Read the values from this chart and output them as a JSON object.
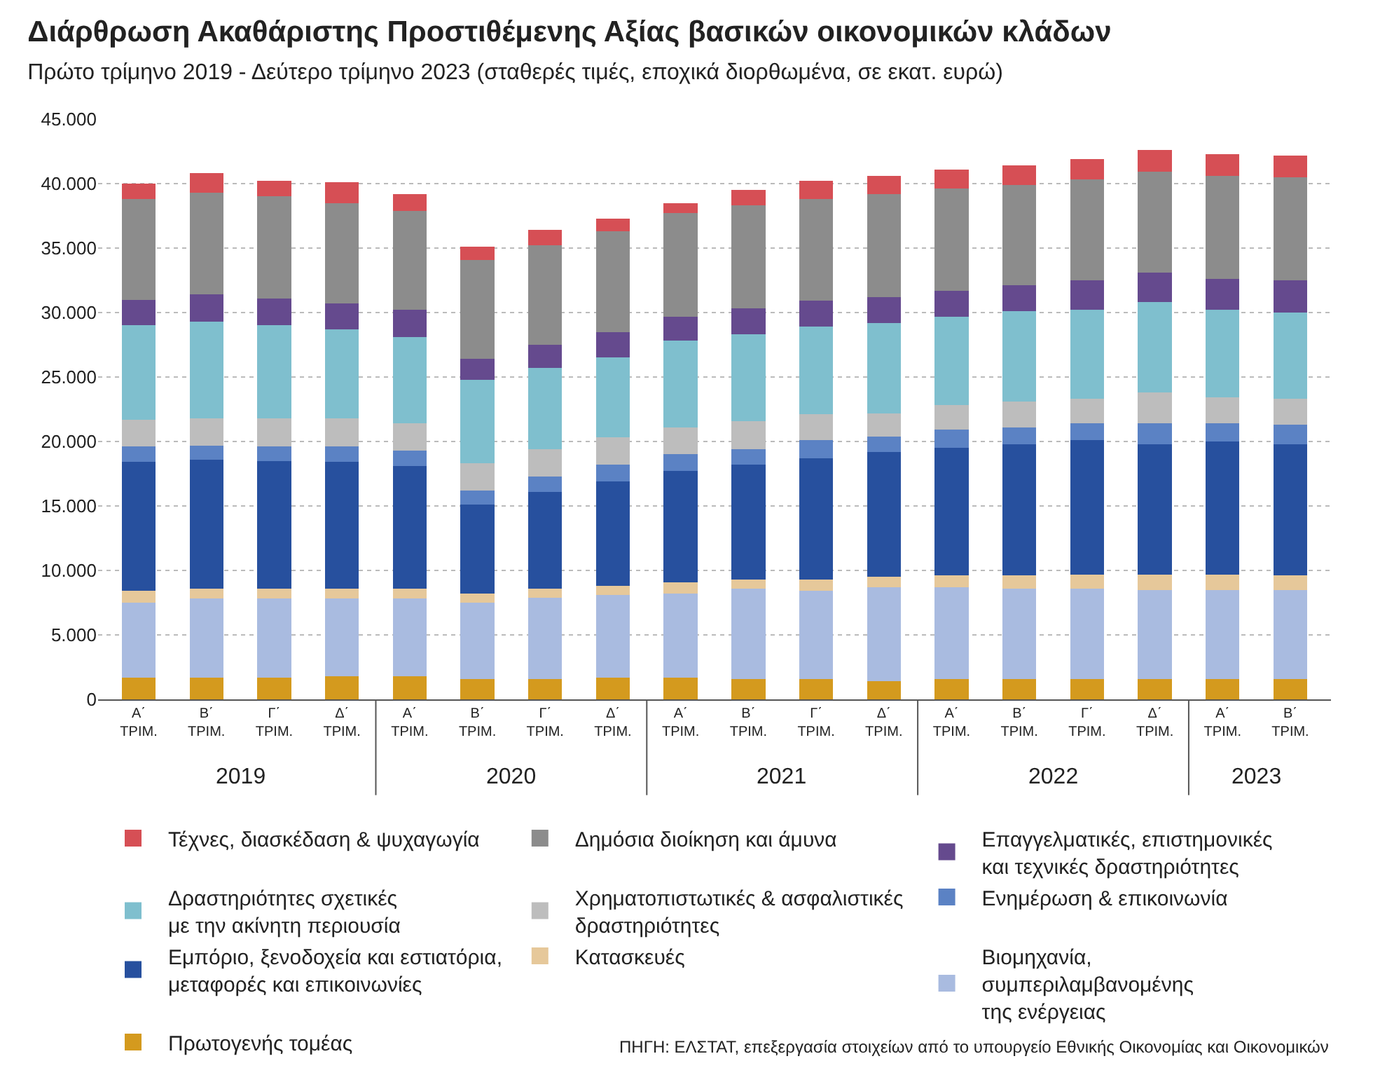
{
  "chart_data": {
    "type": "bar",
    "stacked": true,
    "title": "Διάρθρωση Ακαθάριστης Προστιθέμενης Αξίας βασικών οικονομικών κλάδων",
    "subtitle": "Πρώτο τρίμηνο 2019 - Δεύτερο τρίμηνο 2023 (σταθερές τιμές, εποχικά διορθωμένα, σε εκατ. ευρώ)",
    "categories": [
      "Α΄ ΤΡΙΜ.",
      "Β΄ ΤΡΙΜ.",
      "Γ΄ ΤΡΙΜ.",
      "Δ΄ ΤΡΙΜ.",
      "Α΄ ΤΡΙΜ.",
      "Β΄ ΤΡΙΜ.",
      "Γ΄ ΤΡΙΜ.",
      "Δ΄ ΤΡΙΜ.",
      "Α΄ ΤΡΙΜ.",
      "Β΄ ΤΡΙΜ.",
      "Γ΄ ΤΡΙΜ.",
      "Δ΄ ΤΡΙΜ.",
      "Α΄ ΤΡΙΜ.",
      "Β΄ ΤΡΙΜ.",
      "Γ΄ ΤΡΙΜ.",
      "Δ΄ ΤΡΙΜ.",
      "Α΄ ΤΡΙΜ.",
      "Β΄ ΤΡΙΜ."
    ],
    "series": [
      {
        "name": "Πρωτογενής τομέας",
        "color": "#d49a1e",
        "values": [
          1700,
          1700,
          1700,
          1800,
          1800,
          1600,
          1600,
          1700,
          1700,
          1600,
          1600,
          1400,
          1600,
          1600,
          1600,
          1600,
          1600,
          1600
        ]
      },
      {
        "name": "Βιομηχανία,\nσυμπεριλαμβανομένης\nτης ενέργειας",
        "color": "#a9bbe0",
        "values": [
          5800,
          6100,
          6100,
          6000,
          6000,
          5900,
          6300,
          6400,
          6500,
          7000,
          6800,
          7300,
          7100,
          7000,
          7000,
          6900,
          6900,
          6900
        ]
      },
      {
        "name": "Κατασκευές",
        "color": "#e6c89a",
        "values": [
          900,
          800,
          800,
          800,
          800,
          700,
          700,
          700,
          900,
          700,
          900,
          800,
          900,
          1000,
          1100,
          1200,
          1200,
          1100
        ]
      },
      {
        "name": "Εμπόριο, ξενοδοχεία και εστιατόρια,\nμεταφορές και επικοινωνίες",
        "color": "#27509e",
        "values": [
          10000,
          10000,
          9900,
          9800,
          9500,
          6900,
          7500,
          8100,
          8600,
          8900,
          9400,
          9700,
          9900,
          10200,
          10400,
          10100,
          10300,
          10200
        ]
      },
      {
        "name": "Ενημέρωση & επικοινωνία",
        "color": "#5b82c4",
        "values": [
          1200,
          1100,
          1100,
          1200,
          1200,
          1100,
          1200,
          1300,
          1300,
          1200,
          1400,
          1200,
          1400,
          1300,
          1300,
          1600,
          1400,
          1500
        ]
      },
      {
        "name": "Χρηματοπιστωτικές & ασφαλιστικές\nδραστηριότητες",
        "color": "#bdbdbd",
        "values": [
          2100,
          2100,
          2200,
          2200,
          2100,
          2100,
          2100,
          2100,
          2100,
          2200,
          2000,
          1800,
          1900,
          2000,
          1900,
          2400,
          2000,
          2000
        ]
      },
      {
        "name": "Δραστηριότητες σχετικές\nμε την ακίνητη περιουσία",
        "color": "#7fbfce",
        "values": [
          7300,
          7500,
          7200,
          6900,
          6700,
          6500,
          6300,
          6200,
          6700,
          6700,
          6800,
          7000,
          6900,
          7000,
          6900,
          7000,
          6800,
          6700
        ]
      },
      {
        "name": "Επαγγελματικές, επιστημονικές\nκαι τεχνικές δραστηριότητες",
        "color": "#654a8e",
        "values": [
          2000,
          2100,
          2100,
          2000,
          2100,
          1600,
          1800,
          2000,
          1900,
          2000,
          2000,
          2000,
          2000,
          2000,
          2300,
          2300,
          2400,
          2500
        ]
      },
      {
        "name": "Δημόσια διοίκηση και άμυνα",
        "color": "#8c8c8c",
        "values": [
          7800,
          7900,
          7900,
          7800,
          7700,
          7700,
          7700,
          7800,
          8000,
          8000,
          7900,
          8000,
          7900,
          7800,
          7800,
          7800,
          8000,
          8000
        ]
      },
      {
        "name": "Τέχνες, διασκέδαση & ψυχαγωγία",
        "color": "#d64f55",
        "values": [
          1200,
          1500,
          1200,
          1600,
          1300,
          1000,
          1200,
          1000,
          800,
          1200,
          1400,
          1400,
          1500,
          1500,
          1600,
          1700,
          1700,
          1700
        ]
      }
    ],
    "ylim": [
      0,
      45000
    ],
    "yticks": [
      {
        "value": 0,
        "label": "0"
      },
      {
        "value": 5000,
        "label": "5.000"
      },
      {
        "value": 10000,
        "label": "10.000"
      },
      {
        "value": 15000,
        "label": "15.000"
      },
      {
        "value": 20000,
        "label": "20.000"
      },
      {
        "value": 25000,
        "label": "25.000"
      },
      {
        "value": 30000,
        "label": "30.000"
      },
      {
        "value": 35000,
        "label": "35.000"
      },
      {
        "value": 40000,
        "label": "40.000"
      },
      {
        "value": 45000,
        "label": "45.000"
      }
    ],
    "grid": "y",
    "legend": "bottom",
    "annotations": [
      "2019",
      "2020",
      "2021",
      "2022",
      "2023",
      "ΠΗΓΗ: ΕΛΣΤΑΤ, επεξεργασία στοιχείων από το υπουργείο Εθνικής Οικονομίας και Οικονομικών"
    ]
  }
}
